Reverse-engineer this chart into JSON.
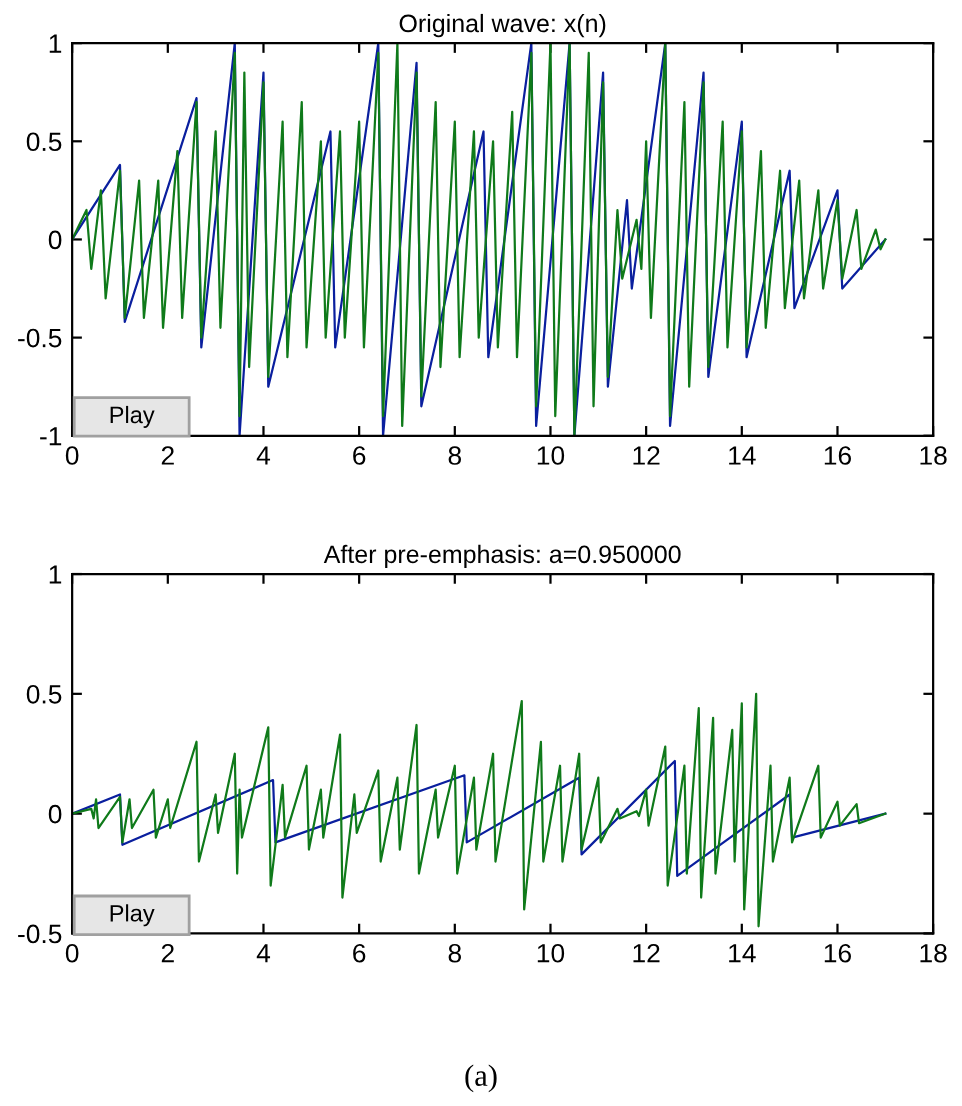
{
  "chart_data": [
    {
      "type": "line",
      "title": "Original wave: x(n)",
      "xlim": [
        0,
        18
      ],
      "xticks": [
        0,
        2,
        4,
        6,
        8,
        10,
        12,
        14,
        16,
        18
      ],
      "ylim": [
        -1,
        1
      ],
      "yticks": [
        -1,
        -0.5,
        0,
        0.5,
        1
      ],
      "grid": false,
      "annotations": [
        "Play"
      ],
      "series": [
        {
          "color": "#0a1f9e",
          "x": [
            0,
            1.0,
            1.1,
            2.6,
            2.7,
            3.4,
            3.5,
            4.0,
            4.1,
            5.4,
            5.5,
            6.4,
            6.5,
            7.2,
            7.3,
            8.6,
            8.7,
            9.6,
            9.7,
            10.4,
            10.5,
            11.1,
            11.2,
            11.6,
            11.7,
            12.4,
            12.5,
            13.2,
            13.3,
            14.0,
            14.1,
            15.0,
            15.1,
            16.0,
            16.1,
            17.0
          ],
          "values": [
            0,
            0.38,
            -0.42,
            0.72,
            -0.55,
            1,
            -1,
            0.85,
            -0.75,
            0.55,
            -0.55,
            1,
            -1,
            0.9,
            -0.85,
            0.55,
            -0.6,
            1,
            -0.95,
            1,
            -1,
            0.85,
            -0.75,
            0.2,
            -0.25,
            1,
            -0.95,
            0.85,
            -0.7,
            0.6,
            -0.6,
            0.35,
            -0.35,
            0.25,
            -0.25,
            0
          ]
        },
        {
          "color": "#0f7a1a",
          "x": [
            0,
            0.3,
            0.4,
            0.6,
            0.7,
            1.0,
            1.1,
            1.4,
            1.5,
            1.8,
            1.9,
            2.2,
            2.3,
            2.6,
            2.7,
            3.0,
            3.1,
            3.4,
            3.5,
            3.6,
            3.7,
            4.0,
            4.1,
            4.4,
            4.5,
            4.8,
            4.9,
            5.2,
            5.3,
            5.6,
            5.7,
            6.0,
            6.1,
            6.4,
            6.5,
            6.8,
            6.9,
            7.2,
            7.3,
            7.6,
            7.7,
            8.0,
            8.1,
            8.4,
            8.5,
            8.8,
            8.9,
            9.2,
            9.3,
            9.6,
            9.7,
            10.0,
            10.1,
            10.4,
            10.5,
            10.8,
            10.9,
            11.1,
            11.2,
            11.4,
            11.5,
            11.8,
            11.9,
            12.0,
            12.1,
            12.4,
            12.5,
            12.8,
            12.9,
            13.2,
            13.3,
            13.6,
            13.7,
            14.0,
            14.1,
            14.4,
            14.5,
            14.8,
            14.9,
            15.2,
            15.3,
            15.6,
            15.7,
            16.0,
            16.1,
            16.4,
            16.5,
            16.8,
            16.9,
            17.0
          ],
          "values": [
            0,
            0.15,
            -0.15,
            0.25,
            -0.3,
            0.35,
            -0.4,
            0.3,
            -0.4,
            0.3,
            -0.45,
            0.45,
            -0.4,
            0.7,
            -0.5,
            0.55,
            -0.45,
            0.95,
            -0.9,
            0.85,
            -0.65,
            0.8,
            -0.7,
            0.6,
            -0.6,
            0.7,
            -0.55,
            0.5,
            -0.5,
            0.55,
            -0.5,
            0.6,
            -0.55,
            0.95,
            -0.9,
            1,
            -0.95,
            0.85,
            -0.8,
            0.7,
            -0.65,
            0.6,
            -0.6,
            0.55,
            -0.5,
            0.5,
            -0.55,
            0.65,
            -0.6,
            0.95,
            -0.85,
            1,
            -0.9,
            1,
            -1,
            0.95,
            -0.85,
            0.8,
            -0.7,
            0.15,
            -0.2,
            0.1,
            -0.15,
            0.5,
            -0.4,
            1,
            -0.9,
            0.7,
            -0.75,
            0.8,
            -0.65,
            0.6,
            -0.55,
            0.55,
            -0.55,
            0.45,
            -0.45,
            0.35,
            -0.35,
            0.3,
            -0.3,
            0.25,
            -0.25,
            0.2,
            -0.2,
            0.15,
            -0.15,
            0.05,
            -0.05,
            0
          ]
        }
      ]
    },
    {
      "type": "line",
      "title": "After pre-emphasis: a=0.950000",
      "xlim": [
        0,
        18
      ],
      "xticks": [
        0,
        2,
        4,
        6,
        8,
        10,
        12,
        14,
        16,
        18
      ],
      "ylim": [
        -0.5,
        1
      ],
      "yticks": [
        -0.5,
        0,
        0.5,
        1
      ],
      "grid": false,
      "annotations": [
        "Play",
        "(a)"
      ],
      "series": [
        {
          "color": "#0a1f9e",
          "x": [
            0,
            1.0,
            1.05,
            4.2,
            4.25,
            8.2,
            8.25,
            10.6,
            10.65,
            12.6,
            12.65,
            15.0,
            15.05,
            17.0
          ],
          "values": [
            0,
            0.08,
            -0.13,
            0.14,
            -0.12,
            0.16,
            -0.12,
            0.15,
            -0.17,
            0.22,
            -0.26,
            0.08,
            -0.1,
            0
          ]
        },
        {
          "color": "#0f7a1a",
          "x": [
            0,
            0.4,
            0.45,
            0.5,
            0.55,
            1.0,
            1.05,
            1.2,
            1.25,
            1.7,
            1.75,
            2.0,
            2.05,
            2.6,
            2.65,
            3.0,
            3.05,
            3.4,
            3.45,
            3.5,
            3.55,
            4.1,
            4.15,
            4.4,
            4.45,
            4.9,
            4.95,
            5.2,
            5.25,
            5.6,
            5.65,
            5.9,
            5.95,
            6.4,
            6.45,
            6.8,
            6.85,
            7.2,
            7.25,
            7.6,
            7.65,
            8.0,
            8.05,
            8.4,
            8.45,
            8.8,
            8.85,
            9.4,
            9.45,
            9.8,
            9.85,
            10.2,
            10.25,
            10.6,
            10.65,
            11.0,
            11.05,
            11.4,
            11.45,
            11.8,
            11.85,
            12.0,
            12.05,
            12.4,
            12.45,
            12.8,
            12.85,
            13.1,
            13.15,
            13.4,
            13.45,
            13.8,
            13.85,
            14.0,
            14.05,
            14.3,
            14.35,
            14.6,
            14.65,
            15.0,
            15.05,
            15.6,
            15.65,
            16.0,
            16.05,
            16.4,
            16.45,
            17.0
          ],
          "values": [
            0,
            0.02,
            -0.02,
            0.06,
            -0.06,
            0.07,
            -0.12,
            0.06,
            -0.06,
            0.1,
            -0.1,
            0.06,
            -0.06,
            0.3,
            -0.2,
            0.08,
            -0.08,
            0.25,
            -0.25,
            0.1,
            -0.1,
            0.36,
            -0.3,
            0.12,
            -0.1,
            0.2,
            -0.15,
            0.1,
            -0.1,
            0.33,
            -0.35,
            0.08,
            -0.08,
            0.18,
            -0.2,
            0.15,
            -0.15,
            0.37,
            -0.25,
            0.1,
            -0.1,
            0.2,
            -0.25,
            0.15,
            -0.15,
            0.25,
            -0.2,
            0.47,
            -0.4,
            0.3,
            -0.2,
            0.2,
            -0.2,
            0.25,
            -0.15,
            0.15,
            -0.12,
            0.02,
            -0.02,
            0.01,
            -0.01,
            0.1,
            -0.05,
            0.28,
            -0.3,
            0.2,
            -0.25,
            0.44,
            -0.35,
            0.4,
            -0.25,
            0.35,
            -0.2,
            0.46,
            -0.4,
            0.5,
            -0.47,
            0.2,
            -0.2,
            0.15,
            -0.12,
            0.2,
            -0.1,
            0.05,
            -0.05,
            0.04,
            -0.04,
            0
          ]
        }
      ]
    }
  ]
}
